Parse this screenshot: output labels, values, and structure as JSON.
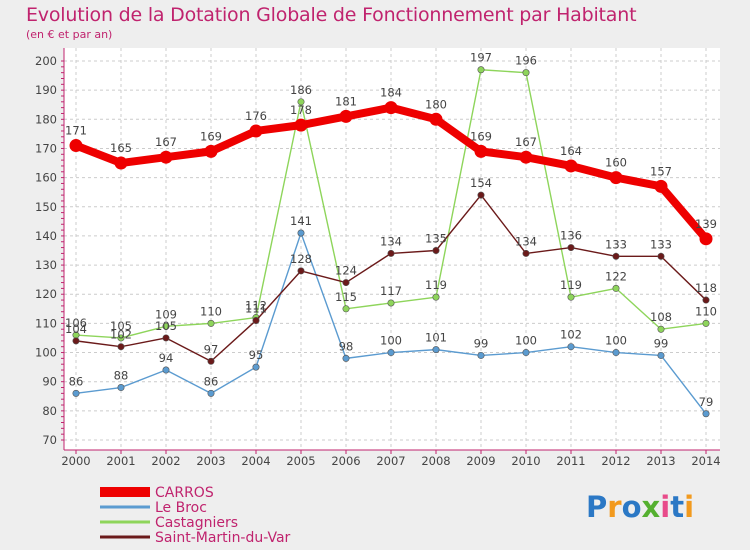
{
  "title": "Evolution de la Dotation Globale de Fonctionnement par Habitant",
  "subtitle": "(en € et par an)",
  "logo_text": "Proxiti",
  "colors": {
    "background": "#eeeeee",
    "plot_background": "#ffffff",
    "title": "#c0236e",
    "axis": "#c0236e",
    "grid": "#cccccc",
    "label": "#444444"
  },
  "chart_data": {
    "type": "line",
    "x": [
      2000,
      2001,
      2002,
      2003,
      2004,
      2005,
      2006,
      2007,
      2008,
      2009,
      2010,
      2011,
      2012,
      2013,
      2014
    ],
    "ylim": [
      70,
      200
    ],
    "yticks": [
      70,
      80,
      90,
      100,
      110,
      120,
      130,
      140,
      150,
      160,
      170,
      180,
      190,
      200
    ],
    "grid": true,
    "legend_position": "bottom-left",
    "series": [
      {
        "name": "CARROS",
        "color": "#ee0000",
        "bold": true,
        "values": [
          171,
          165,
          167,
          169,
          176,
          178,
          181,
          184,
          180,
          169,
          167,
          164,
          160,
          157,
          139
        ]
      },
      {
        "name": "Le Broc",
        "color": "#5b9bd0",
        "bold": false,
        "values": [
          86,
          88,
          94,
          86,
          95,
          141,
          98,
          100,
          101,
          99,
          100,
          102,
          100,
          99,
          79
        ]
      },
      {
        "name": "Castagniers",
        "color": "#8ed55b",
        "bold": false,
        "values": [
          106,
          105,
          109,
          110,
          112,
          186,
          115,
          117,
          119,
          197,
          196,
          119,
          122,
          108,
          110
        ]
      },
      {
        "name": "Saint-Martin-du-Var",
        "color": "#6b1a1a",
        "bold": false,
        "values": [
          104,
          102,
          105,
          97,
          111,
          128,
          124,
          134,
          135,
          154,
          134,
          136,
          133,
          133,
          118
        ]
      }
    ]
  }
}
